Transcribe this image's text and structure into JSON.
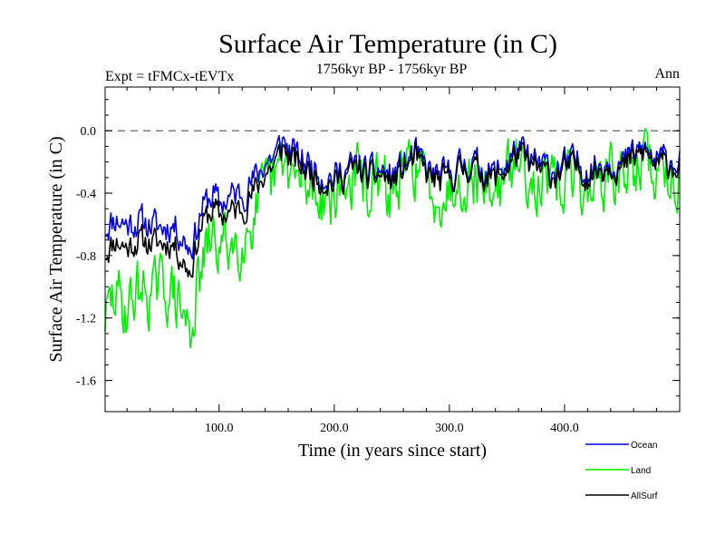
{
  "chart_data": {
    "type": "line",
    "title": "Surface Air Temperature (in C)",
    "subtitle_left": "Expt = tFMCx-tEVTx",
    "subtitle_center": "1756kyr BP - 1756kyr BP",
    "subtitle_right": "Ann",
    "xlabel": "Time (in years since start)",
    "ylabel": "Surface Air Temperature (in C)",
    "xlim": [
      1,
      500
    ],
    "ylim": [
      -1.8,
      0.28
    ],
    "xticks": [
      100,
      200,
      300,
      400
    ],
    "xtick_labels": [
      "100.0",
      "200.0",
      "300.0",
      "400.0"
    ],
    "yticks": [
      0.0,
      -0.4,
      -0.8,
      -1.2,
      -1.6
    ],
    "ytick_labels": [
      "0.0",
      "-0.4",
      "-0.8",
      "-1.2",
      "-1.6"
    ],
    "reference_line": 0.0,
    "series": [
      {
        "name": "Ocean",
        "color": "#0000dd",
        "x": [
          1,
          10,
          20,
          30,
          40,
          50,
          60,
          70,
          75,
          80,
          85,
          90,
          95,
          100,
          110,
          120,
          130,
          140,
          150,
          155,
          160,
          170,
          180,
          190,
          200,
          210,
          220,
          230,
          240,
          250,
          260,
          270,
          275,
          280,
          290,
          300,
          310,
          320,
          330,
          340,
          350,
          360,
          370,
          380,
          390,
          400,
          410,
          420,
          430,
          440,
          450,
          460,
          470,
          480,
          490,
          500
        ],
        "values": [
          -0.62,
          -0.56,
          -0.6,
          -0.58,
          -0.6,
          -0.62,
          -0.6,
          -0.7,
          -0.75,
          -0.65,
          -0.5,
          -0.45,
          -0.4,
          -0.48,
          -0.42,
          -0.4,
          -0.32,
          -0.2,
          -0.15,
          -0.05,
          -0.12,
          -0.18,
          -0.22,
          -0.28,
          -0.3,
          -0.25,
          -0.22,
          -0.28,
          -0.25,
          -0.3,
          -0.22,
          -0.15,
          -0.2,
          -0.25,
          -0.3,
          -0.28,
          -0.22,
          -0.2,
          -0.25,
          -0.28,
          -0.2,
          -0.12,
          -0.2,
          -0.22,
          -0.25,
          -0.22,
          -0.2,
          -0.25,
          -0.22,
          -0.18,
          -0.22,
          -0.15,
          -0.12,
          -0.2,
          -0.18,
          -0.2
        ]
      },
      {
        "name": "Land",
        "color": "#00ee00",
        "x": [
          1,
          10,
          20,
          30,
          40,
          50,
          60,
          70,
          75,
          80,
          85,
          90,
          95,
          100,
          110,
          120,
          130,
          140,
          150,
          155,
          160,
          170,
          180,
          190,
          200,
          210,
          220,
          230,
          240,
          250,
          260,
          270,
          275,
          280,
          290,
          300,
          310,
          320,
          330,
          340,
          350,
          360,
          370,
          380,
          390,
          400,
          410,
          420,
          430,
          440,
          450,
          460,
          470,
          480,
          490,
          500
        ],
        "values": [
          -1.2,
          -1.05,
          -1.15,
          -1.0,
          -1.05,
          -1.0,
          -1.05,
          -1.2,
          -1.3,
          -1.05,
          -0.9,
          -0.75,
          -0.7,
          -0.75,
          -0.72,
          -0.7,
          -0.55,
          -0.4,
          -0.3,
          -0.2,
          -0.25,
          -0.35,
          -0.38,
          -0.4,
          -0.42,
          -0.35,
          -0.28,
          -0.38,
          -0.35,
          -0.4,
          -0.3,
          -0.2,
          -0.28,
          -0.35,
          -0.4,
          -0.38,
          -0.3,
          -0.28,
          -0.35,
          -0.38,
          -0.3,
          -0.18,
          -0.28,
          -0.32,
          -0.38,
          -0.32,
          -0.3,
          -0.38,
          -0.32,
          -0.28,
          -0.32,
          -0.22,
          -0.18,
          -0.28,
          -0.26,
          -0.3
        ]
      },
      {
        "name": "AllSurf",
        "color": "#000000",
        "x": [
          1,
          10,
          20,
          30,
          40,
          50,
          60,
          70,
          75,
          80,
          85,
          90,
          95,
          100,
          110,
          120,
          130,
          140,
          150,
          155,
          160,
          170,
          180,
          190,
          200,
          210,
          220,
          230,
          240,
          250,
          260,
          270,
          275,
          280,
          290,
          300,
          310,
          320,
          330,
          340,
          350,
          360,
          370,
          380,
          390,
          400,
          410,
          420,
          430,
          440,
          450,
          460,
          470,
          480,
          490,
          500
        ],
        "values": [
          -0.78,
          -0.7,
          -0.75,
          -0.7,
          -0.72,
          -0.72,
          -0.72,
          -0.85,
          -0.9,
          -0.75,
          -0.6,
          -0.55,
          -0.5,
          -0.55,
          -0.52,
          -0.5,
          -0.4,
          -0.27,
          -0.2,
          -0.1,
          -0.16,
          -0.23,
          -0.27,
          -0.32,
          -0.34,
          -0.28,
          -0.24,
          -0.31,
          -0.28,
          -0.33,
          -0.25,
          -0.17,
          -0.23,
          -0.28,
          -0.33,
          -0.31,
          -0.25,
          -0.23,
          -0.28,
          -0.31,
          -0.24,
          -0.14,
          -0.23,
          -0.26,
          -0.29,
          -0.25,
          -0.23,
          -0.29,
          -0.25,
          -0.21,
          -0.25,
          -0.18,
          -0.14,
          -0.23,
          -0.21,
          -0.24
        ]
      }
    ],
    "legend": [
      "Ocean",
      "Land",
      "AllSurf"
    ],
    "legend_position": "bottom-right"
  }
}
